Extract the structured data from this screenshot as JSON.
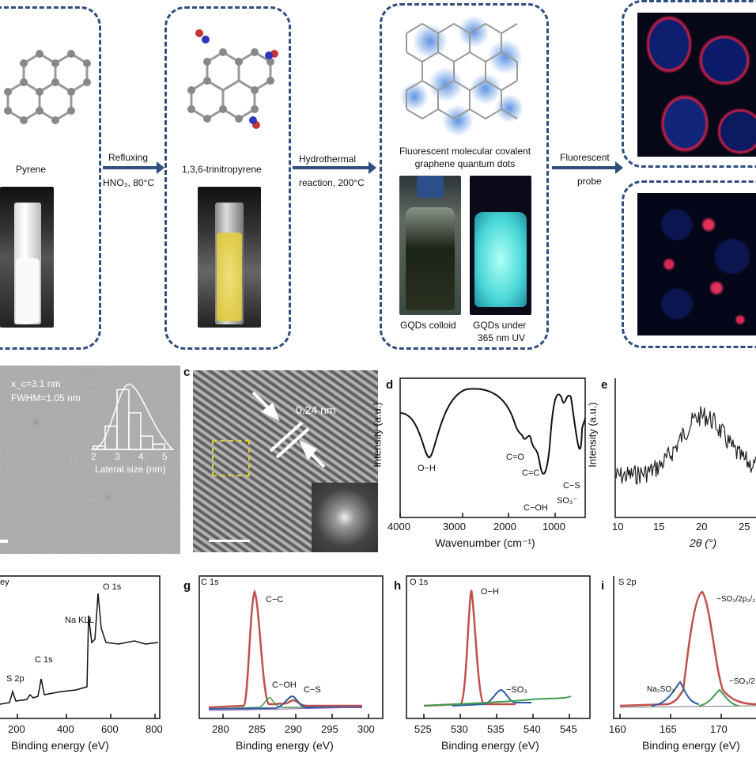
{
  "top_row": {
    "pyrene": {
      "label": "Pyrene"
    },
    "step1": {
      "line1": "Refluxing",
      "line2": "HNO₃, 80°C"
    },
    "trinitropyrene": {
      "label": "1,3,6-trinitropyrene"
    },
    "step2": {
      "line1": "Hydrothermal",
      "line2": "reaction, 200°C"
    },
    "gqd": {
      "line1": "Fluorescent molecular covalent",
      "line2": "graphene quantum dots",
      "colloid": "GQDs colloid",
      "uv_line1": "GQDs under",
      "uv_line2": "365 nm UV"
    },
    "step3": {
      "line1": "Fluorescent",
      "line2": "probe"
    }
  },
  "panel_b": {
    "stat1": "x_c=3.1 nm",
    "stat2": "FWHM=1.05 nm",
    "xlabel": "Lateral size (nm)",
    "ticks": [
      "2",
      "3",
      "4",
      "5"
    ],
    "hist_values": [
      0.05,
      0.35,
      0.9,
      0.55,
      0.2,
      0.08
    ]
  },
  "panel_c": {
    "letter": "c",
    "spacing": "0.24 nm"
  },
  "panel_d": {
    "letter": "d",
    "ylabel": "Intensity (a.u.)",
    "xlabel": "Wavenumber (cm⁻¹)",
    "ticks": [
      "4000",
      "3000",
      "2000",
      "1000"
    ],
    "annotations": [
      "O−H",
      "C=O",
      "C=C",
      "C−OH",
      "SO₃⁻",
      "C−S"
    ]
  },
  "panel_e": {
    "letter": "e",
    "ylabel": "Intensity (a.u.)",
    "xlabel": "2θ (°)",
    "ticks": [
      "10",
      "15",
      "20",
      "25"
    ]
  },
  "panel_f": {
    "title": "ey",
    "labels": [
      "O 1s",
      "Na KLL",
      "C 1s",
      "S 2p"
    ],
    "ticks": [
      "200",
      "400",
      "600",
      "800"
    ],
    "xlabel": "Binding energy (eV)"
  },
  "panel_g": {
    "letter": "g",
    "title": "C 1s",
    "labels": [
      "C−C",
      "C−OH",
      "C−S"
    ],
    "ticks": [
      "280",
      "285",
      "290",
      "295",
      "300"
    ],
    "xlabel": "Binding energy (eV)"
  },
  "panel_h": {
    "letter": "h",
    "title": "O 1s",
    "labels": [
      "O−H",
      "−SO₃"
    ],
    "ticks": [
      "525",
      "530",
      "535",
      "540",
      "545"
    ],
    "xlabel": "Binding energy (eV)"
  },
  "panel_i": {
    "letter": "i",
    "title": "S 2p",
    "labels": [
      "−SO₃/2p₃/₂",
      "Na₂SO₃",
      "−SO₃/2"
    ],
    "ticks": [
      "160",
      "165",
      "170"
    ],
    "xlabel": "Binding energy (eV)"
  },
  "colors": {
    "box": "#2f4d7d",
    "red_peak": "#c0504d",
    "blue_peak": "#2e5d9f",
    "green_peak": "#3f9f4f"
  }
}
